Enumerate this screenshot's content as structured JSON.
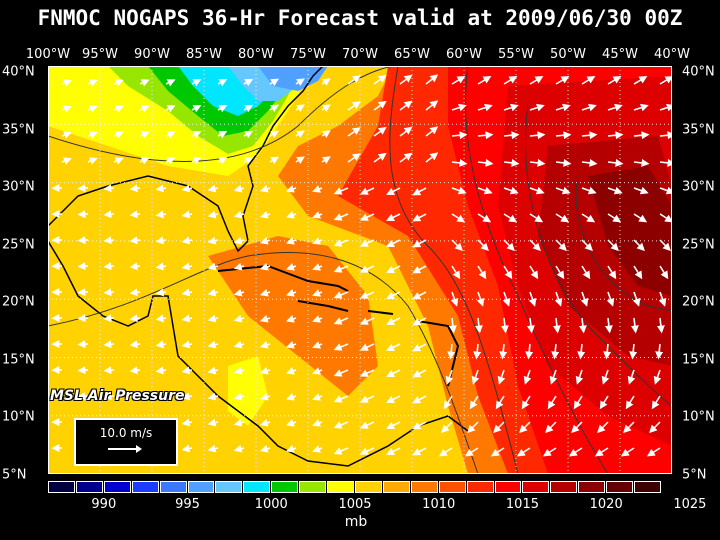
{
  "title": "FNMOC NOGAPS 36-Hr Forecast valid at 2009/06/30 00Z",
  "product_label": "MSL Air Pressure",
  "reference_vector": "10.0 m/s",
  "colorbar": {
    "unit": "mb",
    "labels": [
      "990",
      "995",
      "1000",
      "1005",
      "1010",
      "1015",
      "1020",
      "1025"
    ],
    "colors": [
      "#000040",
      "#00008b",
      "#0000cd",
      "#1e3cff",
      "#3c78ff",
      "#50a0ff",
      "#64c8ff",
      "#00e6ff",
      "#00c800",
      "#96e600",
      "#ffff00",
      "#ffd200",
      "#ffaa00",
      "#ff7800",
      "#ff5000",
      "#ff2800",
      "#ff0000",
      "#dc0000",
      "#b40000",
      "#8c0000",
      "#640000",
      "#3c0000"
    ]
  },
  "axes": {
    "top_lon": [
      "100°W",
      "95°W",
      "90°W",
      "85°W",
      "80°W",
      "75°W",
      "70°W",
      "65°W",
      "60°W",
      "55°W",
      "50°W",
      "45°W",
      "40°W"
    ],
    "lat": [
      "40°N",
      "35°N",
      "30°N",
      "25°N",
      "20°N",
      "15°N",
      "10°N",
      "5°N"
    ]
  }
}
